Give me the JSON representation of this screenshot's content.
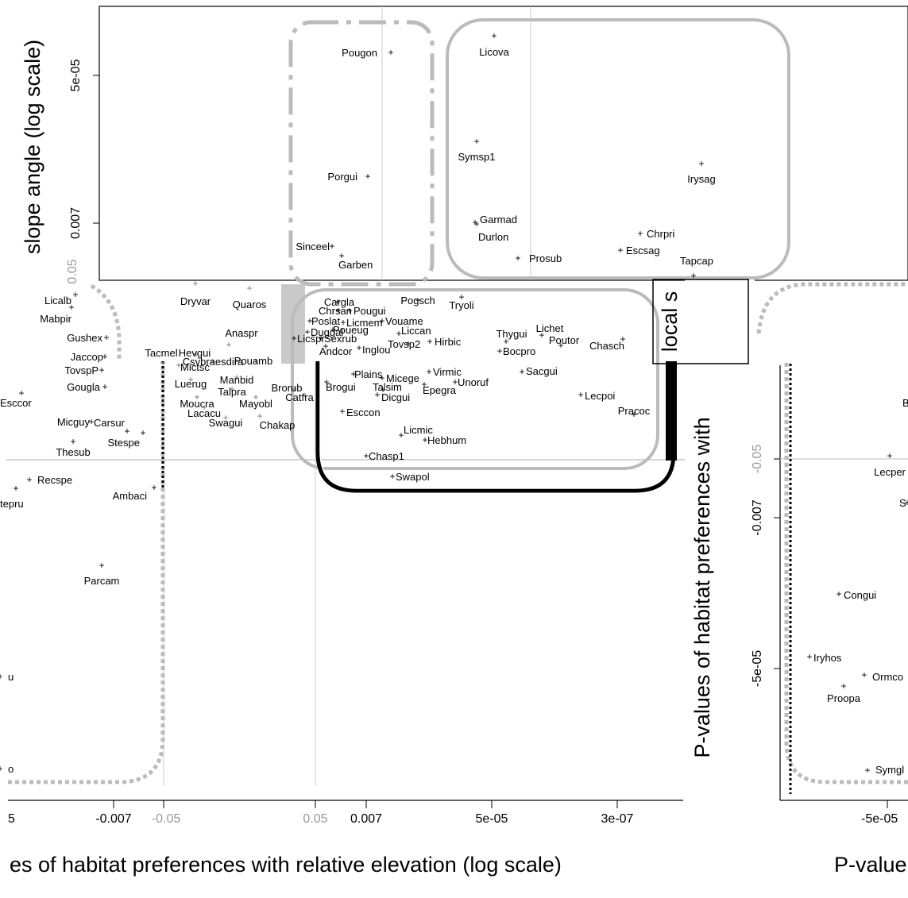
{
  "chart_data": [
    {
      "type": "scatter",
      "panel": "top",
      "ylabel": "slope angle (log scale)",
      "yticks": [
        "5e-05",
        "0.007",
        "0.05"
      ],
      "points": [
        {
          "label": "Pougon",
          "x": 0.5,
          "y": 0.0003
        },
        {
          "label": "Porgui",
          "x": 0.45,
          "y": 0.0025
        },
        {
          "label": "Sinceel",
          "x": 0.18,
          "y": 0.02
        },
        {
          "label": "Garben",
          "x": 0.3,
          "y": 0.03
        },
        {
          "label": "Licova",
          "x": 1.4,
          "y": 2e-05
        },
        {
          "label": "Symsp1",
          "x": 0.95,
          "y": 0.0012
        },
        {
          "label": "Garmad",
          "x": 0.92,
          "y": 0.009
        },
        {
          "label": "Durlon",
          "x": 0.98,
          "y": 0.01
        },
        {
          "label": "Prosub",
          "x": 1.6,
          "y": 0.025
        },
        {
          "label": "Irysag",
          "x": 11.0,
          "y": 0.0015
        },
        {
          "label": "Chrpri",
          "x": 5.5,
          "y": 0.015
        },
        {
          "label": "Escsag",
          "x": 5.0,
          "y": 0.022
        },
        {
          "label": "Tapcap",
          "x": 9.0,
          "y": 0.04
        }
      ]
    },
    {
      "type": "scatter",
      "panel": "main",
      "xlabel": "es of habitat preferences with relative elevation (log scale)",
      "xticks": [
        "-0.007",
        "-0.05",
        "0.05",
        "0.007",
        "5e-05",
        "3e-07"
      ],
      "x_tick_cut": "5",
      "inner_ylabel": "P-values of habitat preferences with",
      "inner_ylabel2": "local s",
      "points": [
        {
          "label": "Licalb",
          "x": -0.0016,
          "y": 0.046
        },
        {
          "label": "Mabpir",
          "x": -0.0015,
          "y": 0.053
        },
        {
          "label": "Gushex",
          "x": -0.0012,
          "y": 0.09
        },
        {
          "label": "Jaccop",
          "x": -0.0013,
          "y": 0.12
        },
        {
          "label": "TovspP",
          "x": -0.0013,
          "y": 0.15
        },
        {
          "label": "Gougla",
          "x": -0.0012,
          "y": 0.2
        },
        {
          "label": "Esccor",
          "x": -0.0001,
          "y": 0.25
        },
        {
          "label": "Micguy",
          "x": -0.0014,
          "y": 0.3
        },
        {
          "label": "Carsur",
          "x": -0.0082,
          "y": 0.33
        },
        {
          "label": "Stespe",
          "x": -0.0095,
          "y": 0.4
        },
        {
          "label": "Thesub",
          "x": -0.0014,
          "y": 0.42
        },
        {
          "label": "Recspe",
          "x": -0.0003,
          "y": 0.6
        },
        {
          "label": "tepru",
          "x": -0.0002,
          "y": 0.65
        },
        {
          "label": "Ambaci",
          "x": -0.045,
          "y": 0.65
        },
        {
          "label": "Parcam",
          "x": -0.0035,
          "y": 1.2
        },
        {
          "label": "u",
          "x": -0.0001,
          "y": 2.5
        },
        {
          "label": "o",
          "x": -0.0001,
          "y": 4.0
        },
        {
          "label": "Dryvar",
          "x": -0.2,
          "y": 0.04
        },
        {
          "label": "Quaros",
          "x": -0.3,
          "y": 0.045
        },
        {
          "label": "Anaspr",
          "x": -0.25,
          "y": 0.08
        },
        {
          "label": "Tacmel",
          "x": -0.055,
          "y": 0.11
        },
        {
          "label": "Hevgui",
          "x": -0.08,
          "y": 0.11
        },
        {
          "label": "Mictsc",
          "x": -0.06,
          "y": 0.14
        },
        {
          "label": "Csvbraesdira",
          "x": -0.1,
          "y": 0.13
        },
        {
          "label": "Pouamb",
          "x": -0.3,
          "y": 0.13
        },
        {
          "label": "Luerug",
          "x": -0.08,
          "y": 0.17
        },
        {
          "label": "Manbid",
          "x": -0.15,
          "y": 0.16
        },
        {
          "label": "Talpra",
          "x": -0.2,
          "y": 0.19
        },
        {
          "label": "Brorub",
          "x": -0.5,
          "y": 0.18
        },
        {
          "label": "Moucra",
          "x": -0.07,
          "y": 0.22
        },
        {
          "label": "Mayobl",
          "x": -0.25,
          "y": 0.23
        },
        {
          "label": "Catfra",
          "x": -0.9,
          "y": 0.21
        },
        {
          "label": "Lacacu",
          "x": -0.1,
          "y": 0.26
        },
        {
          "label": "Swagui",
          "x": -0.15,
          "y": 0.28
        },
        {
          "label": "Chakap",
          "x": -0.3,
          "y": 0.3
        },
        {
          "label": "Cargla",
          "x": 0.12,
          "y": 0.04
        },
        {
          "label": "Pogsch",
          "x": 0.5,
          "y": 0.04
        },
        {
          "label": "Tryoli",
          "x": 1.1,
          "y": 0.04
        },
        {
          "label": "Chrsan",
          "x": 0.1,
          "y": 0.05
        },
        {
          "label": "Pougui",
          "x": 0.2,
          "y": 0.05
        },
        {
          "label": "Poslat",
          "x": 0.09,
          "y": 0.055
        },
        {
          "label": "Licmem",
          "x": 0.2,
          "y": 0.055
        },
        {
          "label": "Vouame",
          "x": 0.3,
          "y": 0.055
        },
        {
          "label": "Duggal",
          "x": 0.09,
          "y": 0.065
        },
        {
          "label": "Poueug",
          "x": 0.12,
          "y": 0.065
        },
        {
          "label": "Liccan",
          "x": 0.4,
          "y": 0.07
        },
        {
          "label": "Licspr",
          "x": 0.07,
          "y": 0.075
        },
        {
          "label": "Sexrub",
          "x": 0.1,
          "y": 0.075
        },
        {
          "label": "Tovsp2",
          "x": 0.4,
          "y": 0.08
        },
        {
          "label": "Hirbic",
          "x": 0.8,
          "y": 0.08
        },
        {
          "label": "Andcor",
          "x": 0.1,
          "y": 0.09
        },
        {
          "label": "Inglou",
          "x": 0.2,
          "y": 0.09
        },
        {
          "label": "Thygui",
          "x": 1.5,
          "y": 0.075
        },
        {
          "label": "Lichet",
          "x": 2.2,
          "y": 0.07
        },
        {
          "label": "Poutor",
          "x": 2.6,
          "y": 0.08
        },
        {
          "label": "Chasch",
          "x": 4.0,
          "y": 0.085
        },
        {
          "label": "Bocpro",
          "x": 1.7,
          "y": 0.09
        },
        {
          "label": "Sacgui",
          "x": 1.8,
          "y": 0.14
        },
        {
          "label": "Micege",
          "x": 0.4,
          "y": 0.16
        },
        {
          "label": "Virmic",
          "x": 0.7,
          "y": 0.14
        },
        {
          "label": "Talsim",
          "x": 0.3,
          "y": 0.17
        },
        {
          "label": "Epegra",
          "x": 0.6,
          "y": 0.18
        },
        {
          "label": "Unoruf",
          "x": 1.0,
          "y": 0.17
        },
        {
          "label": "Brogui",
          "x": 0.15,
          "y": 0.17
        },
        {
          "label": "Plains",
          "x": 0.2,
          "y": 0.15
        },
        {
          "label": "Dicgui",
          "x": 0.35,
          "y": 0.2
        },
        {
          "label": "Lecpoi",
          "x": 3.0,
          "y": 0.2
        },
        {
          "label": "Esccon",
          "x": 0.2,
          "y": 0.27
        },
        {
          "label": "Pracoc",
          "x": 5.0,
          "y": 0.27
        },
        {
          "label": "Licmic",
          "x": 0.6,
          "y": 0.35
        },
        {
          "label": "Hebhum",
          "x": 0.7,
          "y": 0.38
        },
        {
          "label": "Chasp1",
          "x": 0.3,
          "y": 0.45
        },
        {
          "label": "Swapol",
          "x": 0.4,
          "y": 0.55
        }
      ]
    },
    {
      "type": "scatter",
      "panel": "right",
      "xlabel": "P-value",
      "xticks": [
        "-5e-05"
      ],
      "yticks": [
        "-0.05",
        "-0.007",
        "-5e-05"
      ],
      "points": [
        {
          "label": "Lecper",
          "x": -5e-05,
          "y": -0.05
        },
        {
          "label": "S",
          "x": -1e-05,
          "y": -0.01
        },
        {
          "label": "Congui",
          "x": -0.0003,
          "y": -0.0005
        },
        {
          "label": "Iryhos",
          "x": -0.001,
          "y": -6e-05
        },
        {
          "label": "Ormco",
          "x": -0.0002,
          "y": -4e-05
        },
        {
          "label": "Proopa",
          "x": -0.0004,
          "y": -3e-05
        },
        {
          "label": "Symgl",
          "x": -5e-05,
          "y": -2e-06
        },
        {
          "label": "B",
          "x": -1e-05,
          "y": -0.2
        }
      ]
    }
  ],
  "colors": {
    "ink": "#000000",
    "grey_text": "#777777",
    "frame_grey": "#bbbbbb",
    "light_line": "#cccccc"
  }
}
